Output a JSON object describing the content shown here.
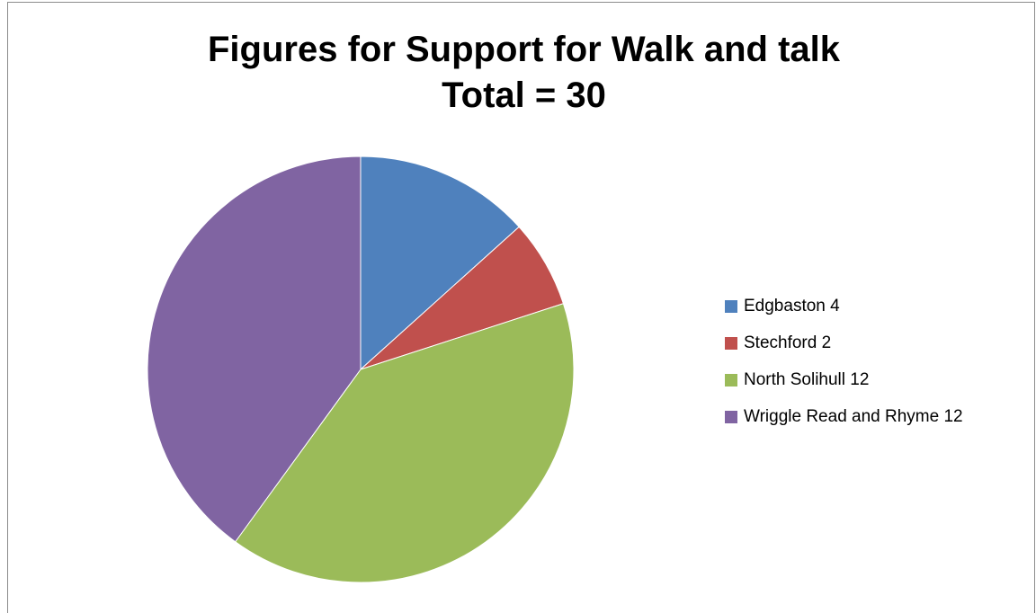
{
  "chart_data": {
    "type": "pie",
    "title": "Figures for Support for Walk and talk",
    "subtitle": "Total = 30",
    "categories": [
      "Edgbaston 4",
      "Stechford 2",
      "North Solihull 12",
      "Wriggle Read and Rhyme 12"
    ],
    "values": [
      4,
      2,
      12,
      12
    ],
    "colors": [
      "#4f81bd",
      "#c0504d",
      "#9bbb59",
      "#8064a2"
    ],
    "legend_position": "right"
  }
}
